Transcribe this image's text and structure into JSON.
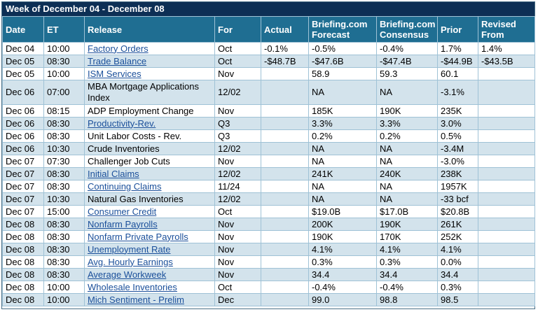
{
  "title": "Week of December 04 - December 08",
  "columns": {
    "date": "Date",
    "et": "ET",
    "release": "Release",
    "for": "For",
    "actual": "Actual",
    "forecast": [
      "Briefing.com",
      "Forecast"
    ],
    "consensus": [
      "Briefing.com",
      "Consensus"
    ],
    "prior": "Prior",
    "revised": [
      "Revised",
      "From"
    ]
  },
  "rows": [
    {
      "date": "Dec 04",
      "et": "10:00",
      "release": "Factory Orders",
      "link": true,
      "for": "Oct",
      "actual": "-0.1%",
      "forecast": "-0.5%",
      "consensus": "-0.4%",
      "prior": "1.7%",
      "revised": "1.4%"
    },
    {
      "date": "Dec 05",
      "et": "08:30",
      "release": "Trade Balance",
      "link": true,
      "for": "Oct",
      "actual": "-$48.7B",
      "forecast": "-$47.6B",
      "consensus": "-$47.4B",
      "prior": "-$44.9B",
      "revised": "-$43.5B"
    },
    {
      "date": "Dec 05",
      "et": "10:00",
      "release": "ISM Services",
      "link": true,
      "for": "Nov",
      "actual": "",
      "forecast": "58.9",
      "consensus": "59.3",
      "prior": "60.1",
      "revised": ""
    },
    {
      "date": "Dec 06",
      "et": "07:00",
      "release": "MBA Mortgage Applications Index",
      "link": false,
      "for": "12/02",
      "actual": "",
      "forecast": "NA",
      "consensus": "NA",
      "prior": "-3.1%",
      "revised": ""
    },
    {
      "date": "Dec 06",
      "et": "08:15",
      "release": "ADP Employment Change",
      "link": false,
      "for": "Nov",
      "actual": "",
      "forecast": "185K",
      "consensus": "190K",
      "prior": "235K",
      "revised": ""
    },
    {
      "date": "Dec 06",
      "et": "08:30",
      "release": "Productivity-Rev.",
      "link": true,
      "for": "Q3",
      "actual": "",
      "forecast": "3.3%",
      "consensus": "3.3%",
      "prior": "3.0%",
      "revised": ""
    },
    {
      "date": "Dec 06",
      "et": "08:30",
      "release": "Unit Labor Costs - Rev.",
      "link": false,
      "for": "Q3",
      "actual": "",
      "forecast": "0.2%",
      "consensus": "0.2%",
      "prior": "0.5%",
      "revised": ""
    },
    {
      "date": "Dec 06",
      "et": "10:30",
      "release": "Crude Inventories",
      "link": false,
      "for": "12/02",
      "actual": "",
      "forecast": "NA",
      "consensus": "NA",
      "prior": "-3.4M",
      "revised": ""
    },
    {
      "date": "Dec 07",
      "et": "07:30",
      "release": "Challenger Job Cuts",
      "link": false,
      "for": "Nov",
      "actual": "",
      "forecast": "NA",
      "consensus": "NA",
      "prior": "-3.0%",
      "revised": ""
    },
    {
      "date": "Dec 07",
      "et": "08:30",
      "release": "Initial Claims",
      "link": true,
      "for": "12/02",
      "actual": "",
      "forecast": "241K",
      "consensus": "240K",
      "prior": "238K",
      "revised": ""
    },
    {
      "date": "Dec 07",
      "et": "08:30",
      "release": "Continuing Claims",
      "link": true,
      "for": "11/24",
      "actual": "",
      "forecast": "NA",
      "consensus": "NA",
      "prior": "1957K",
      "revised": ""
    },
    {
      "date": "Dec 07",
      "et": "10:30",
      "release": "Natural Gas Inventories",
      "link": false,
      "for": "12/02",
      "actual": "",
      "forecast": "NA",
      "consensus": "NA",
      "prior": "-33 bcf",
      "revised": ""
    },
    {
      "date": "Dec 07",
      "et": "15:00",
      "release": "Consumer Credit",
      "link": true,
      "for": "Oct",
      "actual": "",
      "forecast": "$19.0B",
      "consensus": "$17.0B",
      "prior": "$20.8B",
      "revised": ""
    },
    {
      "date": "Dec 08",
      "et": "08:30",
      "release": "Nonfarm Payrolls",
      "link": true,
      "for": "Nov",
      "actual": "",
      "forecast": "200K",
      "consensus": "190K",
      "prior": "261K",
      "revised": ""
    },
    {
      "date": "Dec 08",
      "et": "08:30",
      "release": "Nonfarm Private Payrolls",
      "link": true,
      "for": "Nov",
      "actual": "",
      "forecast": "190K",
      "consensus": "170K",
      "prior": "252K",
      "revised": ""
    },
    {
      "date": "Dec 08",
      "et": "08:30",
      "release": "Unemployment Rate",
      "link": true,
      "for": "Nov",
      "actual": "",
      "forecast": "4.1%",
      "consensus": "4.1%",
      "prior": "4.1%",
      "revised": ""
    },
    {
      "date": "Dec 08",
      "et": "08:30",
      "release": "Avg. Hourly Earnings",
      "link": true,
      "for": "Nov",
      "actual": "",
      "forecast": "0.3%",
      "consensus": "0.3%",
      "prior": "0.0%",
      "revised": ""
    },
    {
      "date": "Dec 08",
      "et": "08:30",
      "release": "Average Workweek",
      "link": true,
      "for": "Nov",
      "actual": "",
      "forecast": "34.4",
      "consensus": "34.4",
      "prior": "34.4",
      "revised": ""
    },
    {
      "date": "Dec 08",
      "et": "10:00",
      "release": "Wholesale Inventories",
      "link": true,
      "for": "Oct",
      "actual": "",
      "forecast": "-0.4%",
      "consensus": "-0.4%",
      "prior": "0.3%",
      "revised": ""
    },
    {
      "date": "Dec 08",
      "et": "10:00",
      "release": "Mich Sentiment - Prelim",
      "link": true,
      "for": "Dec",
      "actual": "",
      "forecast": "99.0",
      "consensus": "98.8",
      "prior": "98.5",
      "revised": ""
    }
  ]
}
